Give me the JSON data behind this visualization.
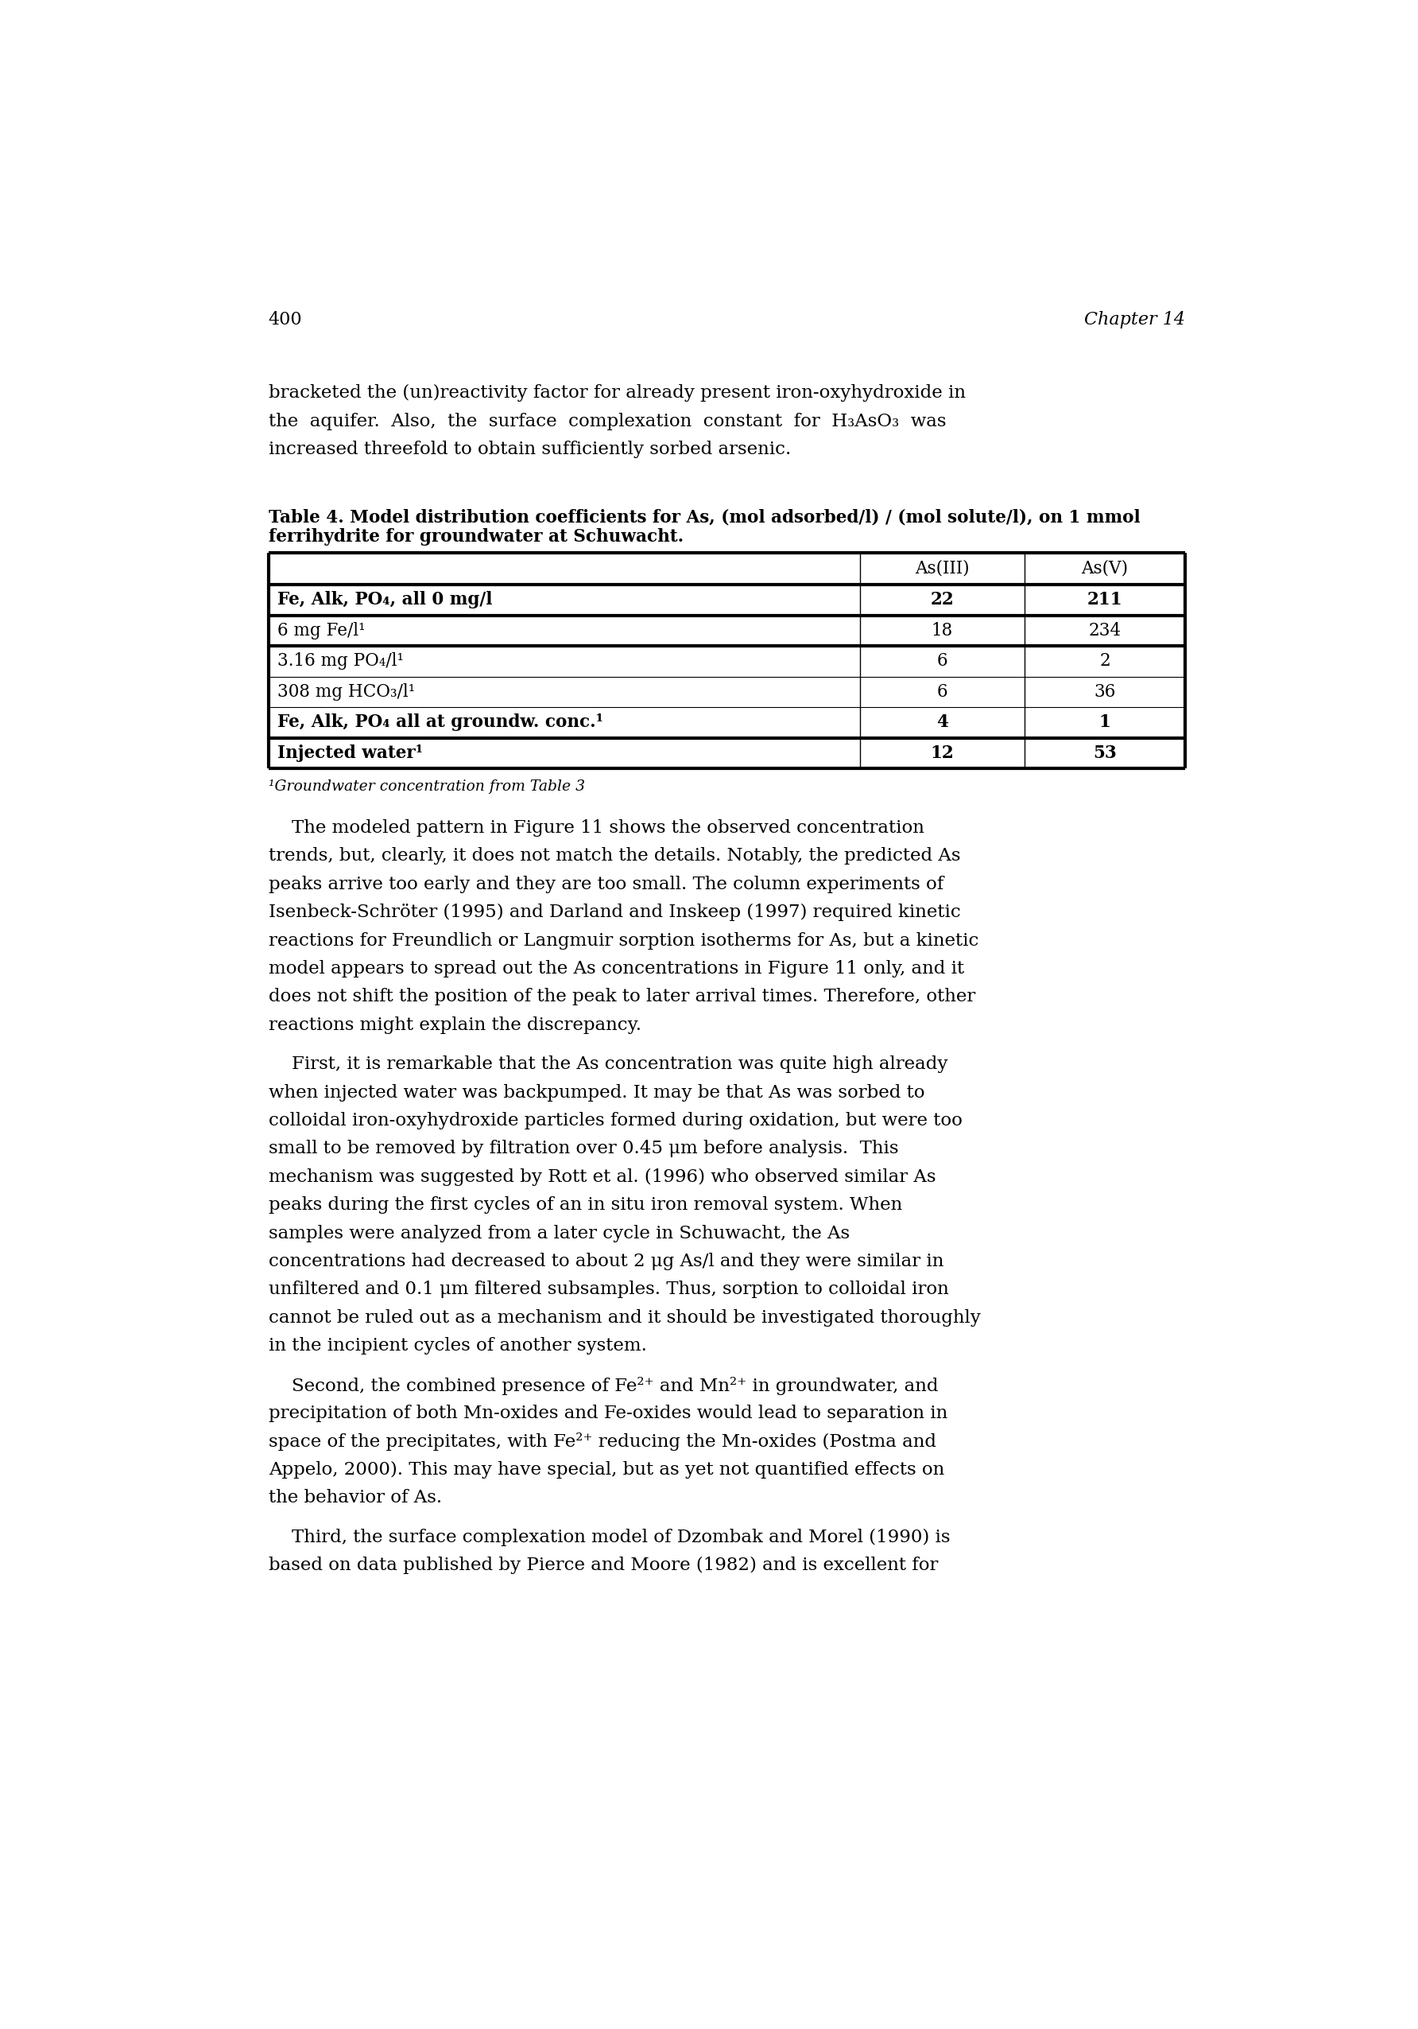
{
  "page_number": "400",
  "chapter": "Chapter 14",
  "table_title_line1": "Table 4. Model distribution coefficients for As, (mol adsorbed/l) / (mol solute/l), on 1 mmol",
  "table_title_line2": "ferrihydrite for groundwater at Schuwacht.",
  "table_headers": [
    "",
    "As(III)",
    "As(V)"
  ],
  "table_rows": [
    [
      "Fe, Alk, PO₄, all 0 mg/l",
      "22",
      "211"
    ],
    [
      "6 mg Fe/l¹",
      "18",
      "234"
    ],
    [
      "3.16 mg PO₄/l¹",
      "6",
      "2"
    ],
    [
      "308 mg HCO₃/l¹",
      "6",
      "36"
    ],
    [
      "Fe, Alk, PO₄ all at groundw. conc.¹",
      "4",
      "1"
    ],
    [
      "Injected water¹",
      "12",
      "53"
    ]
  ],
  "bold_rows": [
    0,
    4,
    5
  ],
  "table_footnote": "¹Groundwater concentration from Table 3",
  "p1_lines": [
    "bracketed the (un)reactivity factor for already present iron-oxyhydroxide in",
    "the  aquifer.  Also,  the  surface  complexation  constant  for  H₃AsO₃  was",
    "increased threefold to obtain sufficiently sorbed arsenic."
  ],
  "p2_lines": [
    "    The modeled pattern in Figure 11 shows the observed concentration",
    "trends, but, clearly, it does not match the details. Notably, the predicted As",
    "peaks arrive too early and they are too small. The column experiments of",
    "Isenbeck-Schröter (1995) and Darland and Inskeep (1997) required kinetic",
    "reactions for Freundlich or Langmuir sorption isotherms for As, but a kinetic",
    "model appears to spread out the As concentrations in Figure 11 only, and it",
    "does not shift the position of the peak to later arrival times. Therefore, other",
    "reactions might explain the discrepancy."
  ],
  "p3_lines": [
    "    First, it is remarkable that the As concentration was quite high already",
    "when injected water was backpumped. It may be that As was sorbed to",
    "colloidal iron-oxyhydroxide particles formed during oxidation, but were too",
    "small to be removed by filtration over 0.45 μm before analysis.  This",
    "mechanism was suggested by Rott et al. (1996) who observed similar As",
    "peaks during the first cycles of an in situ iron removal system. When",
    "samples were analyzed from a later cycle in Schuwacht, the As",
    "concentrations had decreased to about 2 μg As/l and they were similar in",
    "unfiltered and 0.1 μm filtered subsamples. Thus, sorption to colloidal iron",
    "cannot be ruled out as a mechanism and it should be investigated thoroughly",
    "in the incipient cycles of another system."
  ],
  "p4_lines": [
    "    Second, the combined presence of Fe²⁺ and Mn²⁺ in groundwater, and",
    "precipitation of both Mn-oxides and Fe-oxides would lead to separation in",
    "space of the precipitates, with Fe²⁺ reducing the Mn-oxides (Postma and",
    "Appelo, 2000). This may have special, but as yet not quantified effects on",
    "the behavior of As."
  ],
  "p5_lines": [
    "    Third, the surface complexation model of Dzombak and Morel (1990) is",
    "based on data published by Pierce and Moore (1982) and is excellent for"
  ],
  "background_color": "#ffffff"
}
